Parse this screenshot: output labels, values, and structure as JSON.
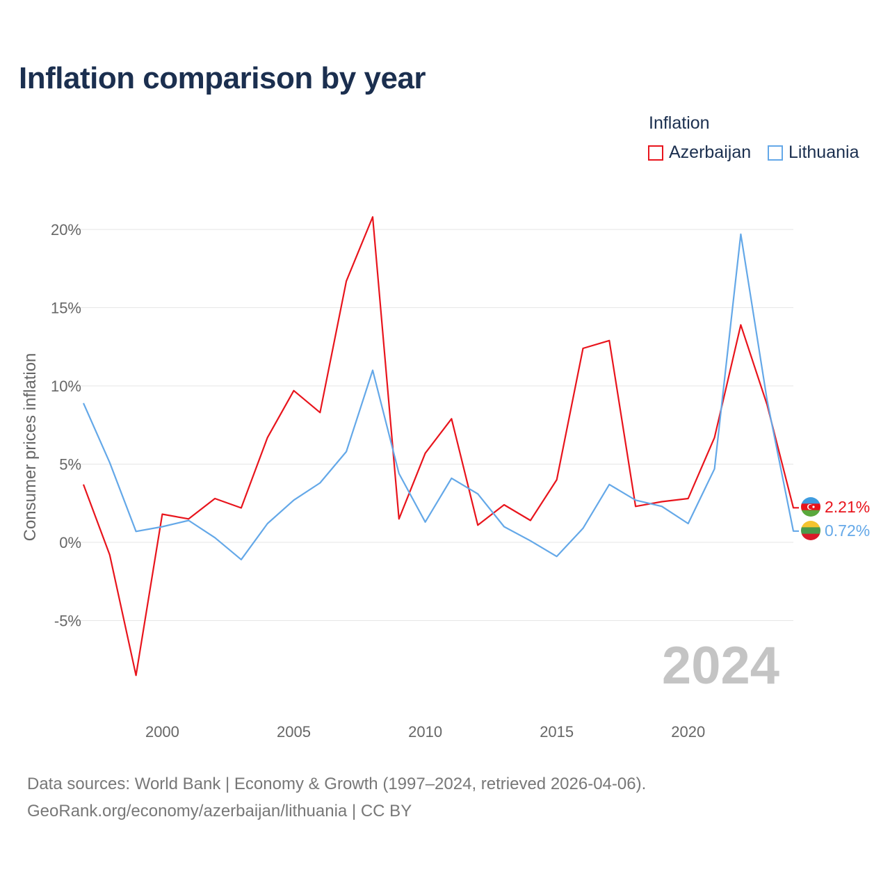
{
  "title": "Inflation comparison by year",
  "legend": {
    "title": "Inflation",
    "items": [
      {
        "label": "Azerbaijan",
        "color": "#e8141c"
      },
      {
        "label": "Lithuania",
        "color": "#64a8e8"
      }
    ]
  },
  "chart_data": {
    "type": "line",
    "title": "Inflation comparison by year",
    "xlabel": "",
    "ylabel": "Consumer prices inflation",
    "xlim": [
      1997,
      2024
    ],
    "ylim": [
      -10,
      22
    ],
    "x": [
      1997,
      1998,
      1999,
      2000,
      2001,
      2002,
      2003,
      2004,
      2005,
      2006,
      2007,
      2008,
      2009,
      2010,
      2011,
      2012,
      2013,
      2014,
      2015,
      2016,
      2017,
      2018,
      2019,
      2020,
      2021,
      2022,
      2023,
      2024
    ],
    "series": [
      {
        "name": "Azerbaijan",
        "color": "#e8141c",
        "values": [
          3.7,
          -0.8,
          -8.5,
          1.8,
          1.5,
          2.8,
          2.2,
          6.7,
          9.7,
          8.3,
          16.7,
          20.8,
          1.5,
          5.7,
          7.9,
          1.1,
          2.4,
          1.4,
          4.0,
          12.4,
          12.9,
          2.3,
          2.6,
          2.8,
          6.7,
          13.9,
          8.8,
          2.21
        ]
      },
      {
        "name": "Lithuania",
        "color": "#64a8e8",
        "values": [
          8.9,
          5.1,
          0.7,
          1.0,
          1.4,
          0.3,
          -1.1,
          1.2,
          2.7,
          3.8,
          5.8,
          11.0,
          4.4,
          1.3,
          4.1,
          3.1,
          1.0,
          0.1,
          -0.9,
          0.9,
          3.7,
          2.7,
          2.3,
          1.2,
          4.7,
          19.7,
          9.1,
          0.72
        ]
      }
    ],
    "x_ticks": [
      {
        "value": 2000,
        "label": "2000"
      },
      {
        "value": 2005,
        "label": "2005"
      },
      {
        "value": 2010,
        "label": "2010"
      },
      {
        "value": 2015,
        "label": "2015"
      },
      {
        "value": 2020,
        "label": "2020"
      }
    ],
    "y_ticks": [
      {
        "value": 20,
        "label": "20%"
      },
      {
        "value": 15,
        "label": "15%"
      },
      {
        "value": 10,
        "label": "10%"
      },
      {
        "value": 5,
        "label": "5%"
      },
      {
        "value": 0,
        "label": "0%"
      },
      {
        "value": -5,
        "label": "-5%"
      }
    ],
    "grid": true,
    "end_labels": [
      {
        "series": "Azerbaijan",
        "label": "2.21%",
        "color": "#e8141c",
        "flag": "azerbaijan-flag-icon"
      },
      {
        "series": "Lithuania",
        "label": "0.72%",
        "color": "#64a8e8",
        "flag": "lithuania-flag-icon"
      }
    ],
    "watermark_year": "2024"
  },
  "sources": {
    "line1": "Data sources: World Bank | Economy & Growth (1997–2024, retrieved 2026-04-06).",
    "line2": "GeoRank.org/economy/azerbaijan/lithuania | CC BY"
  }
}
